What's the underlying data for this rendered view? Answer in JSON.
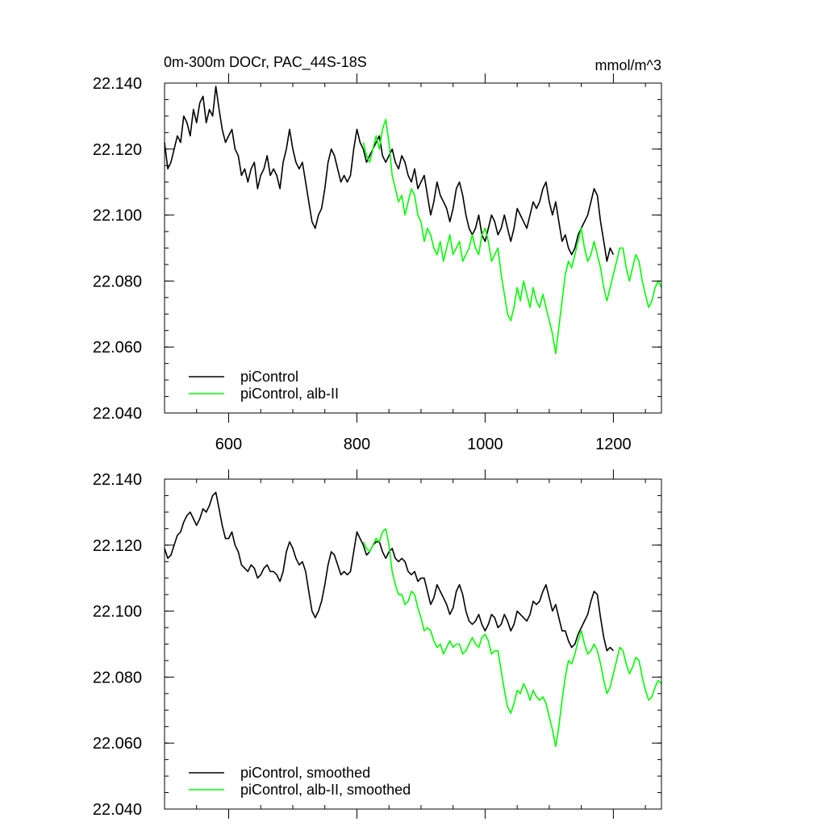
{
  "title": "0m-300m DOCr, PAC_44S-18S",
  "units": "mmol/m^3",
  "colors": {
    "piControl": "#000000",
    "alb": "#00ff00"
  },
  "chart_data": [
    {
      "type": "line",
      "xlim": [
        500,
        1275
      ],
      "ylim": [
        22.04,
        22.14
      ],
      "xticks": [
        600,
        800,
        1000,
        1200
      ],
      "xtick_labels": [
        "600",
        "800",
        "1000",
        "1200"
      ],
      "yticks": [
        22.04,
        22.06,
        22.08,
        22.1,
        22.12,
        22.14
      ],
      "ytick_labels": [
        "22.040",
        "22.060",
        "22.080",
        "22.100",
        "22.120",
        "22.140"
      ],
      "legend_position": "bottom-left",
      "series": [
        {
          "name": "piControl",
          "color": "#000000",
          "x": [
            500,
            505,
            510,
            515,
            520,
            525,
            530,
            535,
            540,
            545,
            550,
            555,
            560,
            565,
            570,
            575,
            580,
            585,
            590,
            595,
            600,
            605,
            610,
            615,
            620,
            625,
            630,
            635,
            640,
            645,
            650,
            655,
            660,
            665,
            670,
            675,
            680,
            685,
            690,
            695,
            700,
            705,
            710,
            715,
            720,
            725,
            730,
            735,
            740,
            745,
            750,
            755,
            760,
            765,
            770,
            775,
            780,
            785,
            790,
            795,
            800,
            805,
            810,
            815,
            820,
            825,
            830,
            835,
            840,
            845,
            850,
            855,
            860,
            865,
            870,
            875,
            880,
            885,
            890,
            895,
            900,
            905,
            910,
            915,
            920,
            925,
            930,
            935,
            940,
            945,
            950,
            955,
            960,
            965,
            970,
            975,
            980,
            985,
            990,
            995,
            1000,
            1005,
            1010,
            1015,
            1020,
            1025,
            1030,
            1035,
            1040,
            1045,
            1050,
            1055,
            1060,
            1065,
            1070,
            1075,
            1080,
            1085,
            1090,
            1095,
            1100,
            1105,
            1110,
            1115,
            1120,
            1125,
            1130,
            1135,
            1140,
            1145,
            1150,
            1155,
            1160,
            1165,
            1170,
            1175,
            1180,
            1185,
            1190,
            1195,
            1200
          ],
          "y": [
            22.122,
            22.114,
            22.116,
            22.12,
            22.124,
            22.122,
            22.13,
            22.128,
            22.124,
            22.132,
            22.128,
            22.134,
            22.136,
            22.128,
            22.132,
            22.13,
            22.139,
            22.132,
            22.126,
            22.122,
            22.124,
            22.126,
            22.12,
            22.118,
            22.112,
            22.114,
            22.11,
            22.114,
            22.116,
            22.108,
            22.112,
            22.114,
            22.118,
            22.112,
            22.114,
            22.112,
            22.108,
            22.116,
            22.12,
            22.126,
            22.12,
            22.116,
            22.114,
            22.116,
            22.11,
            22.104,
            22.098,
            22.096,
            22.1,
            22.102,
            22.108,
            22.116,
            22.12,
            22.118,
            22.114,
            22.11,
            22.112,
            22.11,
            22.112,
            22.12,
            22.126,
            22.122,
            22.12,
            22.116,
            22.118,
            22.12,
            22.122,
            22.124,
            22.118,
            22.116,
            22.118,
            22.12,
            22.116,
            22.114,
            22.118,
            22.116,
            22.112,
            22.11,
            22.114,
            22.108,
            22.11,
            22.112,
            22.106,
            22.1,
            22.104,
            22.11,
            22.106,
            22.104,
            22.102,
            22.098,
            22.102,
            22.108,
            22.11,
            22.106,
            22.1,
            22.096,
            22.094,
            22.096,
            22.1,
            22.094,
            22.092,
            22.096,
            22.1,
            22.098,
            22.094,
            22.096,
            22.1,
            22.096,
            22.092,
            22.096,
            22.102,
            22.1,
            22.098,
            22.096,
            22.1,
            22.104,
            22.102,
            22.104,
            22.108,
            22.11,
            22.104,
            22.1,
            22.104,
            22.098,
            22.092,
            22.094,
            22.09,
            22.088,
            22.09,
            22.094,
            22.096,
            22.098,
            22.1,
            22.104,
            22.108,
            22.106,
            22.098,
            22.092,
            22.086,
            22.09,
            22.088
          ]
        },
        {
          "name": "piControl, alb-II",
          "color": "#00ff00",
          "x": [
            810,
            815,
            820,
            825,
            830,
            835,
            840,
            845,
            850,
            855,
            860,
            865,
            870,
            875,
            880,
            885,
            890,
            895,
            900,
            905,
            910,
            915,
            920,
            925,
            930,
            935,
            940,
            945,
            950,
            955,
            960,
            965,
            970,
            975,
            980,
            985,
            990,
            995,
            1000,
            1005,
            1010,
            1015,
            1020,
            1025,
            1030,
            1035,
            1040,
            1045,
            1050,
            1055,
            1060,
            1065,
            1070,
            1075,
            1080,
            1085,
            1090,
            1095,
            1100,
            1105,
            1110,
            1115,
            1120,
            1125,
            1130,
            1135,
            1140,
            1145,
            1150,
            1155,
            1160,
            1165,
            1170,
            1175,
            1180,
            1185,
            1190,
            1195,
            1200,
            1205,
            1210,
            1215,
            1220,
            1225,
            1230,
            1235,
            1240,
            1245,
            1250,
            1255,
            1260,
            1265,
            1270,
            1275
          ],
          "y": [
            22.122,
            22.118,
            22.116,
            22.12,
            22.124,
            22.12,
            22.126,
            22.129,
            22.122,
            22.112,
            22.108,
            22.104,
            22.106,
            22.1,
            22.104,
            22.108,
            22.106,
            22.1,
            22.098,
            22.092,
            22.096,
            22.094,
            22.09,
            22.088,
            22.092,
            22.086,
            22.09,
            22.094,
            22.088,
            22.09,
            22.092,
            22.086,
            22.088,
            22.09,
            22.094,
            22.09,
            22.088,
            22.094,
            22.096,
            22.092,
            22.086,
            22.088,
            22.09,
            22.082,
            22.076,
            22.07,
            22.068,
            22.072,
            22.078,
            22.074,
            22.08,
            22.076,
            22.072,
            22.078,
            22.074,
            22.072,
            22.076,
            22.072,
            22.068,
            22.064,
            22.058,
            22.066,
            22.074,
            22.082,
            22.086,
            22.084,
            22.088,
            22.092,
            22.096,
            22.09,
            22.086,
            22.088,
            22.092,
            22.088,
            22.084,
            22.078,
            22.074,
            22.078,
            22.082,
            22.086,
            22.09,
            22.09,
            22.084,
            22.08,
            22.084,
            22.088,
            22.086,
            22.08,
            22.076,
            22.072,
            22.074,
            22.078,
            22.08,
            22.078
          ]
        }
      ]
    },
    {
      "type": "line",
      "xlim": [
        500,
        1275
      ],
      "ylim": [
        22.04,
        22.14
      ],
      "xticks": [
        600,
        800,
        1000,
        1200
      ],
      "yticks": [
        22.04,
        22.06,
        22.08,
        22.1,
        22.12,
        22.14
      ],
      "ytick_labels": [
        "22.040",
        "22.060",
        "22.080",
        "22.100",
        "22.120",
        "22.140"
      ],
      "legend_position": "bottom-left",
      "series": [
        {
          "name": "piControl, smoothed",
          "color": "#000000",
          "x": [
            500,
            505,
            510,
            515,
            520,
            525,
            530,
            535,
            540,
            545,
            550,
            555,
            560,
            565,
            570,
            575,
            580,
            585,
            590,
            595,
            600,
            605,
            610,
            615,
            620,
            625,
            630,
            635,
            640,
            645,
            650,
            655,
            660,
            665,
            670,
            675,
            680,
            685,
            690,
            695,
            700,
            705,
            710,
            715,
            720,
            725,
            730,
            735,
            740,
            745,
            750,
            755,
            760,
            765,
            770,
            775,
            780,
            785,
            790,
            795,
            800,
            805,
            810,
            815,
            820,
            825,
            830,
            835,
            840,
            845,
            850,
            855,
            860,
            865,
            870,
            875,
            880,
            885,
            890,
            895,
            900,
            905,
            910,
            915,
            920,
            925,
            930,
            935,
            940,
            945,
            950,
            955,
            960,
            965,
            970,
            975,
            980,
            985,
            990,
            995,
            1000,
            1005,
            1010,
            1015,
            1020,
            1025,
            1030,
            1035,
            1040,
            1045,
            1050,
            1055,
            1060,
            1065,
            1070,
            1075,
            1080,
            1085,
            1090,
            1095,
            1100,
            1105,
            1110,
            1115,
            1120,
            1125,
            1130,
            1135,
            1140,
            1145,
            1150,
            1155,
            1160,
            1165,
            1170,
            1175,
            1180,
            1185,
            1190,
            1195,
            1200
          ],
          "y": [
            22.119,
            22.116,
            22.117,
            22.12,
            22.123,
            22.124,
            22.127,
            22.129,
            22.13,
            22.128,
            22.126,
            22.128,
            22.131,
            22.13,
            22.132,
            22.135,
            22.136,
            22.131,
            22.126,
            22.122,
            22.122,
            22.124,
            22.12,
            22.118,
            22.114,
            22.113,
            22.112,
            22.114,
            22.113,
            22.11,
            22.111,
            22.113,
            22.114,
            22.112,
            22.112,
            22.111,
            22.109,
            22.112,
            22.118,
            22.121,
            22.119,
            22.116,
            22.114,
            22.115,
            22.112,
            22.106,
            22.1,
            22.098,
            22.1,
            22.103,
            22.108,
            22.114,
            22.118,
            22.117,
            22.114,
            22.111,
            22.112,
            22.111,
            22.112,
            22.118,
            22.124,
            22.122,
            22.12,
            22.117,
            22.118,
            22.12,
            22.121,
            22.121,
            22.118,
            22.116,
            22.118,
            22.119,
            22.116,
            22.115,
            22.116,
            22.115,
            22.112,
            22.111,
            22.112,
            22.109,
            22.11,
            22.11,
            22.106,
            22.102,
            22.104,
            22.108,
            22.106,
            22.104,
            22.102,
            22.099,
            22.101,
            22.106,
            22.108,
            22.105,
            22.1,
            22.097,
            22.096,
            22.097,
            22.099,
            22.096,
            22.094,
            22.096,
            22.099,
            22.098,
            22.095,
            22.096,
            22.099,
            22.097,
            22.094,
            22.096,
            22.1,
            22.099,
            22.098,
            22.097,
            22.099,
            22.103,
            22.102,
            22.103,
            22.106,
            22.108,
            22.104,
            22.1,
            22.102,
            22.098,
            22.094,
            22.094,
            22.091,
            22.089,
            22.09,
            22.093,
            22.095,
            22.097,
            22.099,
            22.103,
            22.106,
            22.105,
            22.098,
            22.092,
            22.088,
            22.089,
            22.088
          ]
        },
        {
          "name": "piControl, alb-II, smoothed",
          "color": "#00ff00",
          "x": [
            810,
            815,
            820,
            825,
            830,
            835,
            840,
            845,
            850,
            855,
            860,
            865,
            870,
            875,
            880,
            885,
            890,
            895,
            900,
            905,
            910,
            915,
            920,
            925,
            930,
            935,
            940,
            945,
            950,
            955,
            960,
            965,
            970,
            975,
            980,
            985,
            990,
            995,
            1000,
            1005,
            1010,
            1015,
            1020,
            1025,
            1030,
            1035,
            1040,
            1045,
            1050,
            1055,
            1060,
            1065,
            1070,
            1075,
            1080,
            1085,
            1090,
            1095,
            1100,
            1105,
            1110,
            1115,
            1120,
            1125,
            1130,
            1135,
            1140,
            1145,
            1150,
            1155,
            1160,
            1165,
            1170,
            1175,
            1180,
            1185,
            1190,
            1195,
            1200,
            1205,
            1210,
            1215,
            1220,
            1225,
            1230,
            1235,
            1240,
            1245,
            1250,
            1255,
            1260,
            1265,
            1270,
            1275
          ],
          "y": [
            22.121,
            22.119,
            22.118,
            22.12,
            22.122,
            22.121,
            22.124,
            22.125,
            22.12,
            22.112,
            22.108,
            22.105,
            22.105,
            22.102,
            22.103,
            22.106,
            22.105,
            22.101,
            22.098,
            22.094,
            22.095,
            22.094,
            22.091,
            22.089,
            22.09,
            22.087,
            22.089,
            22.091,
            22.089,
            22.09,
            22.09,
            22.087,
            22.088,
            22.09,
            22.092,
            22.09,
            22.089,
            22.092,
            22.093,
            22.091,
            22.087,
            22.088,
            22.088,
            22.082,
            22.076,
            22.071,
            22.069,
            22.072,
            22.076,
            22.075,
            22.078,
            22.076,
            22.073,
            22.076,
            22.074,
            22.073,
            22.074,
            22.072,
            22.068,
            22.064,
            22.059,
            22.065,
            22.073,
            22.08,
            22.085,
            22.084,
            22.087,
            22.091,
            22.094,
            22.09,
            22.087,
            22.088,
            22.09,
            22.088,
            22.084,
            22.079,
            22.075,
            22.077,
            22.081,
            22.085,
            22.089,
            22.088,
            22.084,
            22.081,
            22.083,
            22.086,
            22.085,
            22.08,
            22.076,
            22.073,
            22.074,
            22.077,
            22.079,
            22.078
          ]
        }
      ]
    }
  ]
}
